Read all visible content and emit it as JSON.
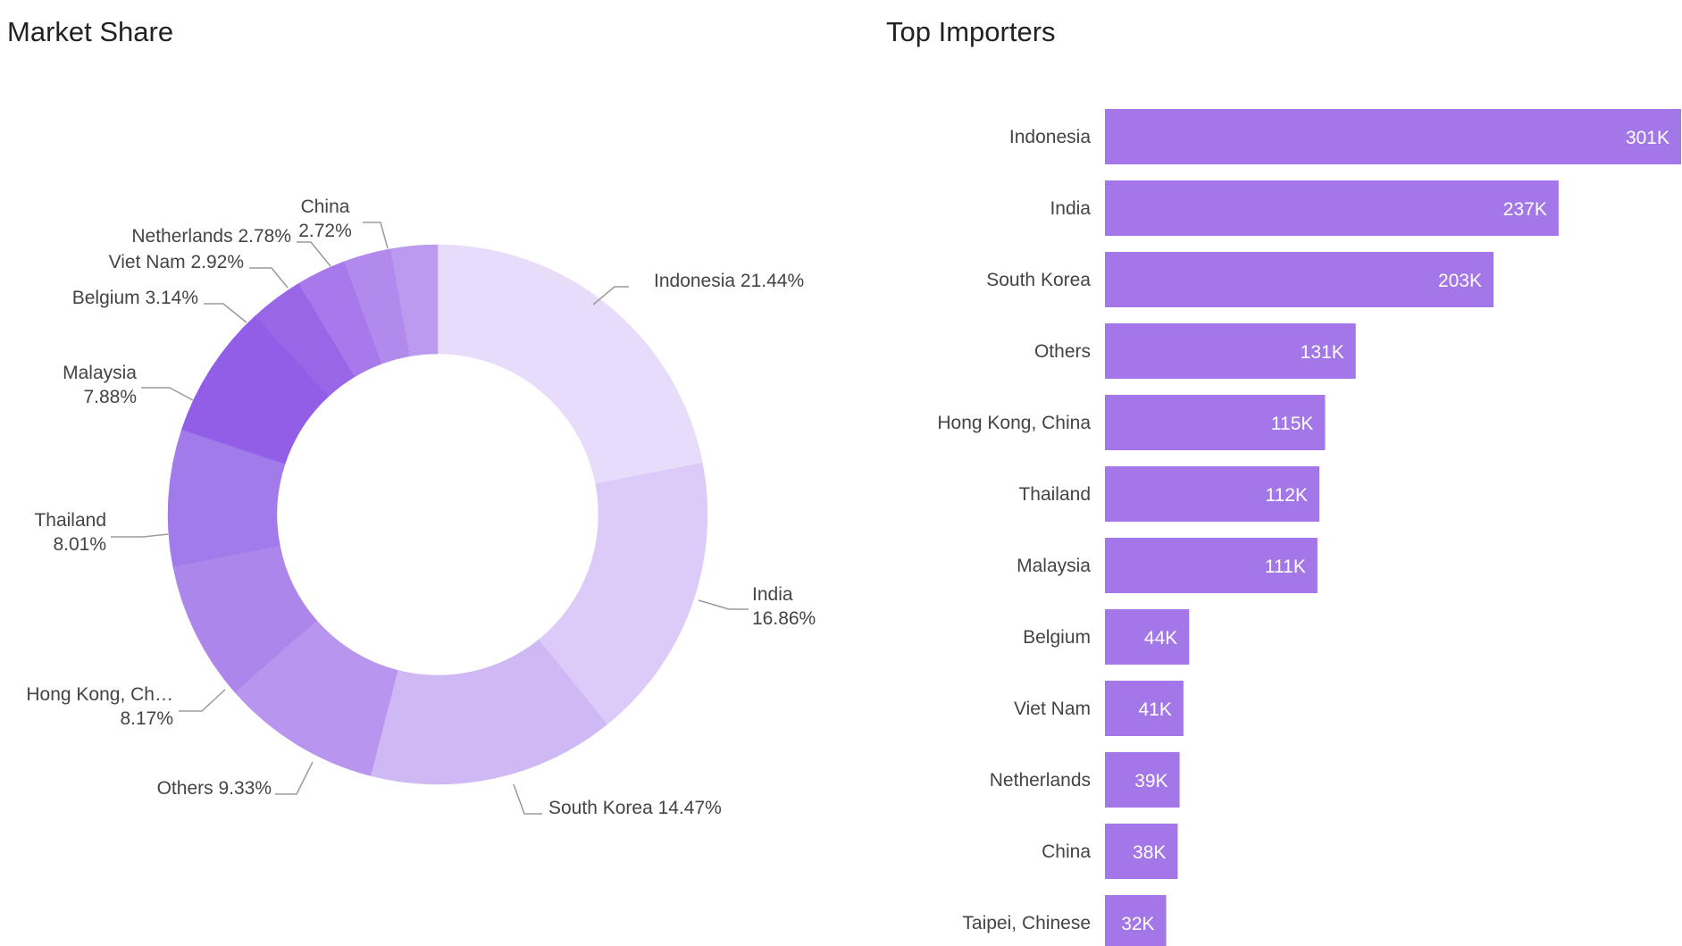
{
  "left_title": "Market Share",
  "right_title": "Top Importers",
  "chart_data": [
    {
      "type": "pie",
      "donut": true,
      "title": "Market Share",
      "unit": "%",
      "slices": [
        {
          "label": "Indonesia",
          "display": "Indonesia 21.44%",
          "value": 21.44,
          "color": "#e8dcfb"
        },
        {
          "label": "India",
          "display": "India\n16.86%",
          "value": 16.86,
          "color": "#dccbf8"
        },
        {
          "label": "South Korea",
          "display": "South Korea 14.47%",
          "value": 14.47,
          "color": "#cfb9f4"
        },
        {
          "label": "Others",
          "display": "Others 9.33%",
          "value": 9.33,
          "color": "#b895ee"
        },
        {
          "label": "Hong Kong, China",
          "display": "Hong Kong, Ch…\n8.17%",
          "value": 8.17,
          "color": "#ac86ea"
        },
        {
          "label": "Thailand",
          "display": "Thailand\n8.01%",
          "value": 8.01,
          "color": "#a07be9"
        },
        {
          "label": "Malaysia",
          "display": "Malaysia\n7.88%",
          "value": 7.88,
          "color": "#935ee7"
        },
        {
          "label": "Belgium",
          "display": "Belgium 3.14%",
          "value": 3.14,
          "color": "#9a66e8"
        },
        {
          "label": "Viet Nam",
          "display": "Viet Nam 2.92%",
          "value": 2.92,
          "color": "#a779ea"
        },
        {
          "label": "Netherlands",
          "display": "Netherlands 2.78%",
          "value": 2.78,
          "color": "#b28aed"
        },
        {
          "label": "China",
          "display": "China\n2.72%",
          "value": 2.72,
          "color": "#bb9af0"
        }
      ]
    },
    {
      "type": "bar",
      "orientation": "horizontal",
      "title": "Top Importers",
      "color": "#a377e8",
      "categories": [
        "Indonesia",
        "India",
        "South Korea",
        "Others",
        "Hong Kong, China",
        "Thailand",
        "Malaysia",
        "Belgium",
        "Viet Nam",
        "Netherlands",
        "China",
        "Taipei, Chinese"
      ],
      "values": [
        301000,
        237000,
        203000,
        131000,
        115000,
        112000,
        111000,
        44000,
        41000,
        39000,
        38000,
        32000
      ],
      "value_labels": [
        "301K",
        "237K",
        "203K",
        "131K",
        "115K",
        "112K",
        "111K",
        "44K",
        "41K",
        "39K",
        "38K",
        "32K"
      ]
    }
  ]
}
